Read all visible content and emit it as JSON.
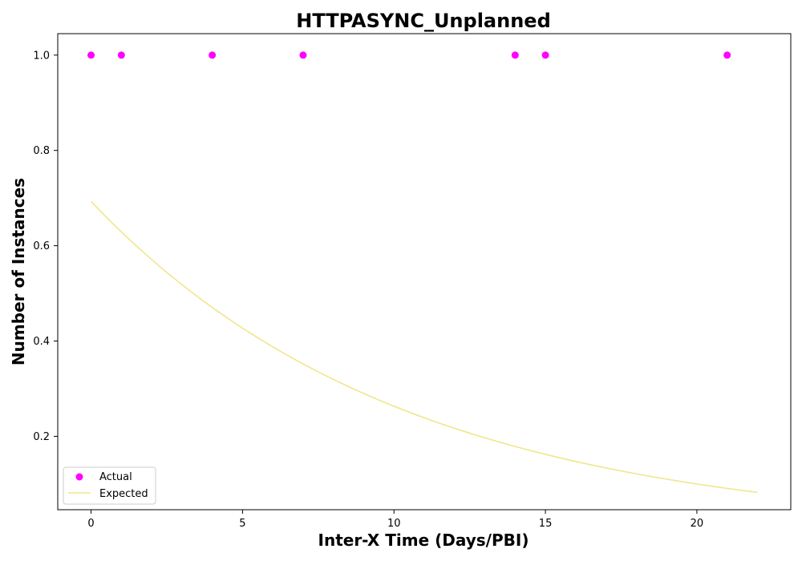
{
  "chart_data": {
    "type": "scatter",
    "title": "HTTPASYNC_Unplanned",
    "xlabel": "Inter-X Time (Days/PBI)",
    "ylabel": "Number of Instances",
    "xlim": [
      -1.1,
      23.1
    ],
    "ylim": [
      0.046,
      1.045
    ],
    "xticks": [
      0,
      5,
      10,
      15,
      20
    ],
    "yticks": [
      0.2,
      0.4,
      0.6,
      0.8,
      1.0
    ],
    "xtick_labels": [
      "0",
      "5",
      "10",
      "15",
      "20"
    ],
    "ytick_labels": [
      "0.2",
      "0.4",
      "0.6",
      "0.8",
      "1.0"
    ],
    "grid": false,
    "legend_position": "lower-left",
    "series": [
      {
        "name": "Actual",
        "kind": "scatter",
        "color": "#ff00ff",
        "x": [
          0,
          1,
          4,
          7,
          14,
          15,
          21
        ],
        "y": [
          1.0,
          1.0,
          1.0,
          1.0,
          1.0,
          1.0,
          1.0
        ]
      },
      {
        "name": "Expected",
        "kind": "line",
        "color": "#f0e68c",
        "model": "exponential",
        "rate": 0.0968,
        "scale": 0.693,
        "x_range": [
          0,
          22
        ]
      }
    ]
  }
}
